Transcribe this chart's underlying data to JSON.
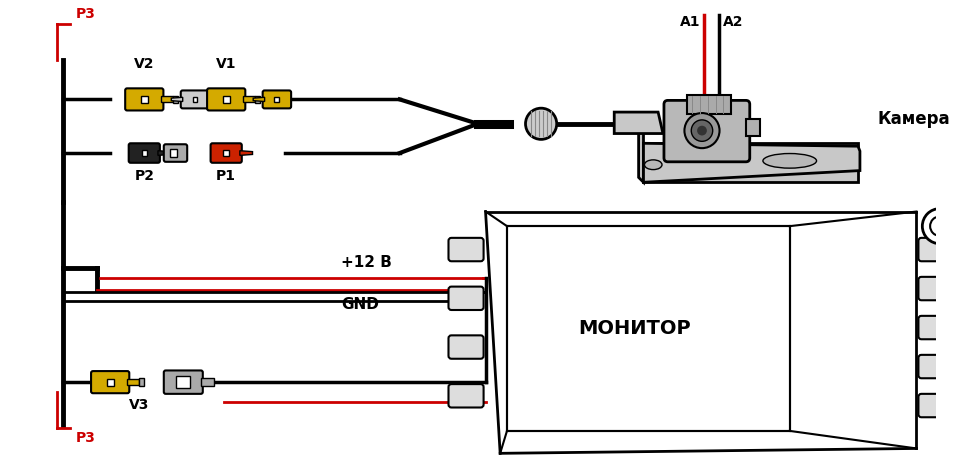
{
  "bg_color": "#ffffff",
  "lc": "#000000",
  "rc": "#cc0000",
  "yc": "#d4aa00",
  "gc": "#aaaaaa",
  "labels": {
    "P3_top": "P3",
    "P3_bottom": "P3",
    "V1": "V1",
    "V2": "V2",
    "P1": "P1",
    "P2": "P2",
    "V3": "V3",
    "A1": "A1",
    "A2": "A2",
    "camera": "Камера",
    "monitor": "МОНИТОР",
    "v12": "+12 В",
    "gnd": "GND"
  },
  "figsize": [
    9.6,
    4.72
  ],
  "dpi": 100
}
